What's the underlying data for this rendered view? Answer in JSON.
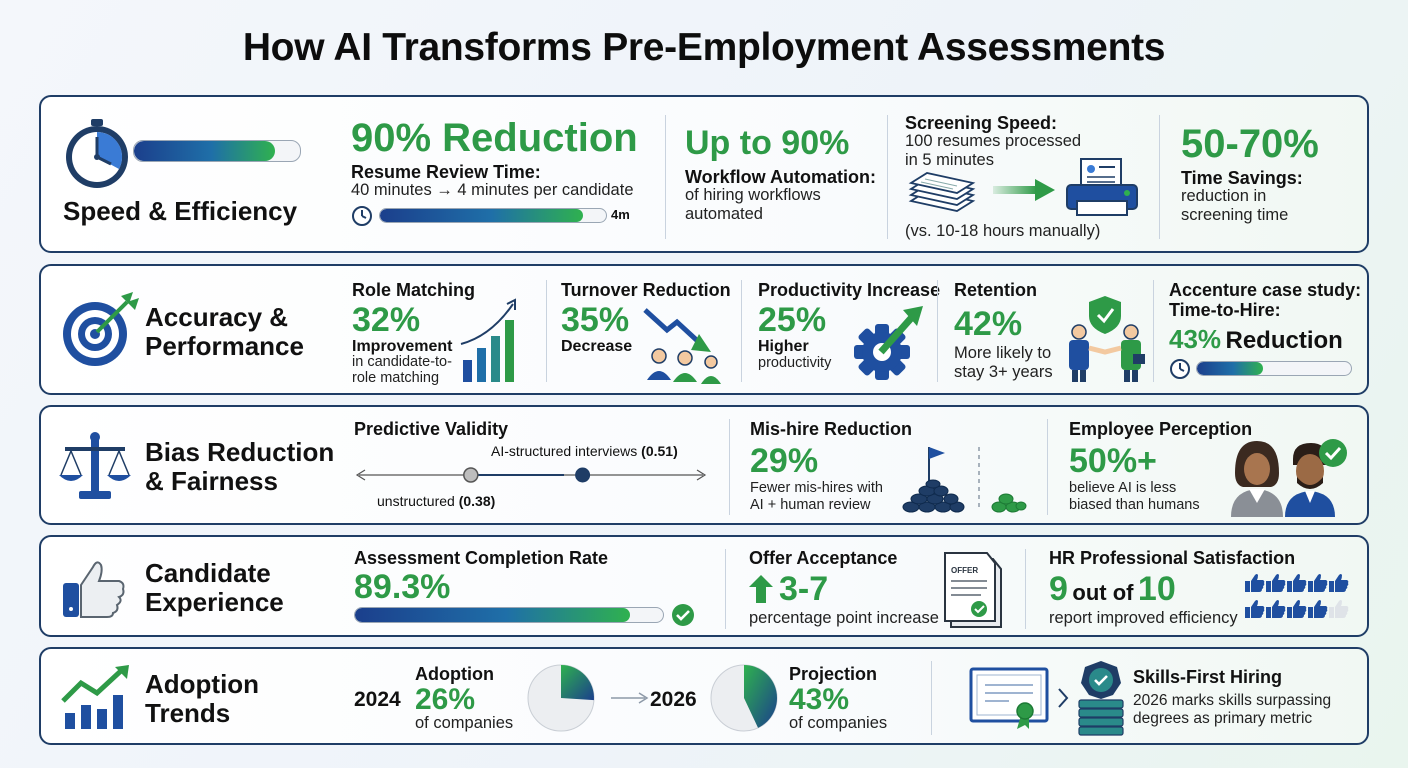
{
  "title": "How AI Transforms Pre-Employment Assessments",
  "colors": {
    "navy": "#1f3d66",
    "green": "#2e9a47",
    "blue": "#1b3f8c"
  },
  "speed": {
    "category": "Speed & Efficiency",
    "progress_fraction": 0.85,
    "resume": {
      "headline": "90% Reduction",
      "label": "Resume Review Time:",
      "desc": "40 minutes → 4 minutes per candidate",
      "bar_value": "4m",
      "bar_fraction": 0.9
    },
    "workflow": {
      "headline": "Up to 90%",
      "label": "Workflow Automation:",
      "desc1": "of hiring workflows",
      "desc2": "automated"
    },
    "screening": {
      "label": "Screening Speed:",
      "desc1": "100 resumes processed",
      "desc2": "in 5 minutes",
      "note": "(vs. 10-18 hours manually)"
    },
    "savings": {
      "headline": "50-70%",
      "label": "Time Savings:",
      "desc1": "reduction in",
      "desc2": "screening time"
    }
  },
  "accuracy": {
    "category_line1": "Accuracy &",
    "category_line2": "Performance",
    "role": {
      "label": "Role Matching",
      "value": "32%",
      "sub": "Improvement",
      "desc1": "in candidate-to-",
      "desc2": "role matching"
    },
    "turnover": {
      "label": "Turnover Reduction",
      "value": "35%",
      "sub": "Decrease"
    },
    "productivity": {
      "label": "Productivity Increase",
      "value": "25%",
      "sub": "Higher",
      "desc": "productivity"
    },
    "retention": {
      "label": "Retention",
      "value": "42%",
      "desc1": "More likely to",
      "desc2": "stay 3+ years"
    },
    "accenture": {
      "label1": "Accenture case study:",
      "label2": "Time-to-Hire:",
      "value": "43%",
      "value_suffix": "Reduction",
      "bar_fraction": 0.43
    }
  },
  "bias": {
    "category_line1": "Bias Reduction",
    "category_line2": "& Fairness",
    "validity": {
      "label": "Predictive Validity",
      "ai_label": "AI-structured interviews",
      "ai_value": "(0.51)",
      "unstructured_label": "unstructured",
      "unstructured_value": "(0.38)",
      "ai_score": 0.51,
      "unstructured_score": 0.38
    },
    "mishire": {
      "label": "Mis-hire Reduction",
      "value": "29%",
      "desc1": "Fewer mis-hires with",
      "desc2": "AI + human review"
    },
    "perception": {
      "label": "Employee Perception",
      "value": "50%+",
      "desc1": "believe AI is less",
      "desc2": "biased than humans"
    }
  },
  "candidate": {
    "category_line1": "Candidate",
    "category_line2": "Experience",
    "completion": {
      "label": "Assessment Completion Rate",
      "value": "89.3%",
      "bar_fraction": 0.893
    },
    "offer": {
      "label": "Offer Acceptance",
      "value": "3-7",
      "desc": "percentage point increase",
      "doc_label": "OFFER"
    },
    "hr": {
      "label": "HR Professional Satisfaction",
      "value_a": "9",
      "value_mid": "out of",
      "value_b": "10",
      "desc": "report improved efficiency",
      "rating": 9,
      "rating_max": 10
    }
  },
  "adoption": {
    "category_line1": "Adoption",
    "category_line2": "Trends",
    "y2024": {
      "year": "2024",
      "label": "Adoption",
      "value": "26%",
      "desc": "of companies",
      "share": 0.26
    },
    "y2026": {
      "year": "2026",
      "label": "Projection",
      "value": "43%",
      "desc": "of companies",
      "share": 0.43
    },
    "skills": {
      "label": "Skills-First Hiring",
      "desc1": "2026 marks skills surpassing",
      "desc2": "degrees as primary metric"
    }
  }
}
